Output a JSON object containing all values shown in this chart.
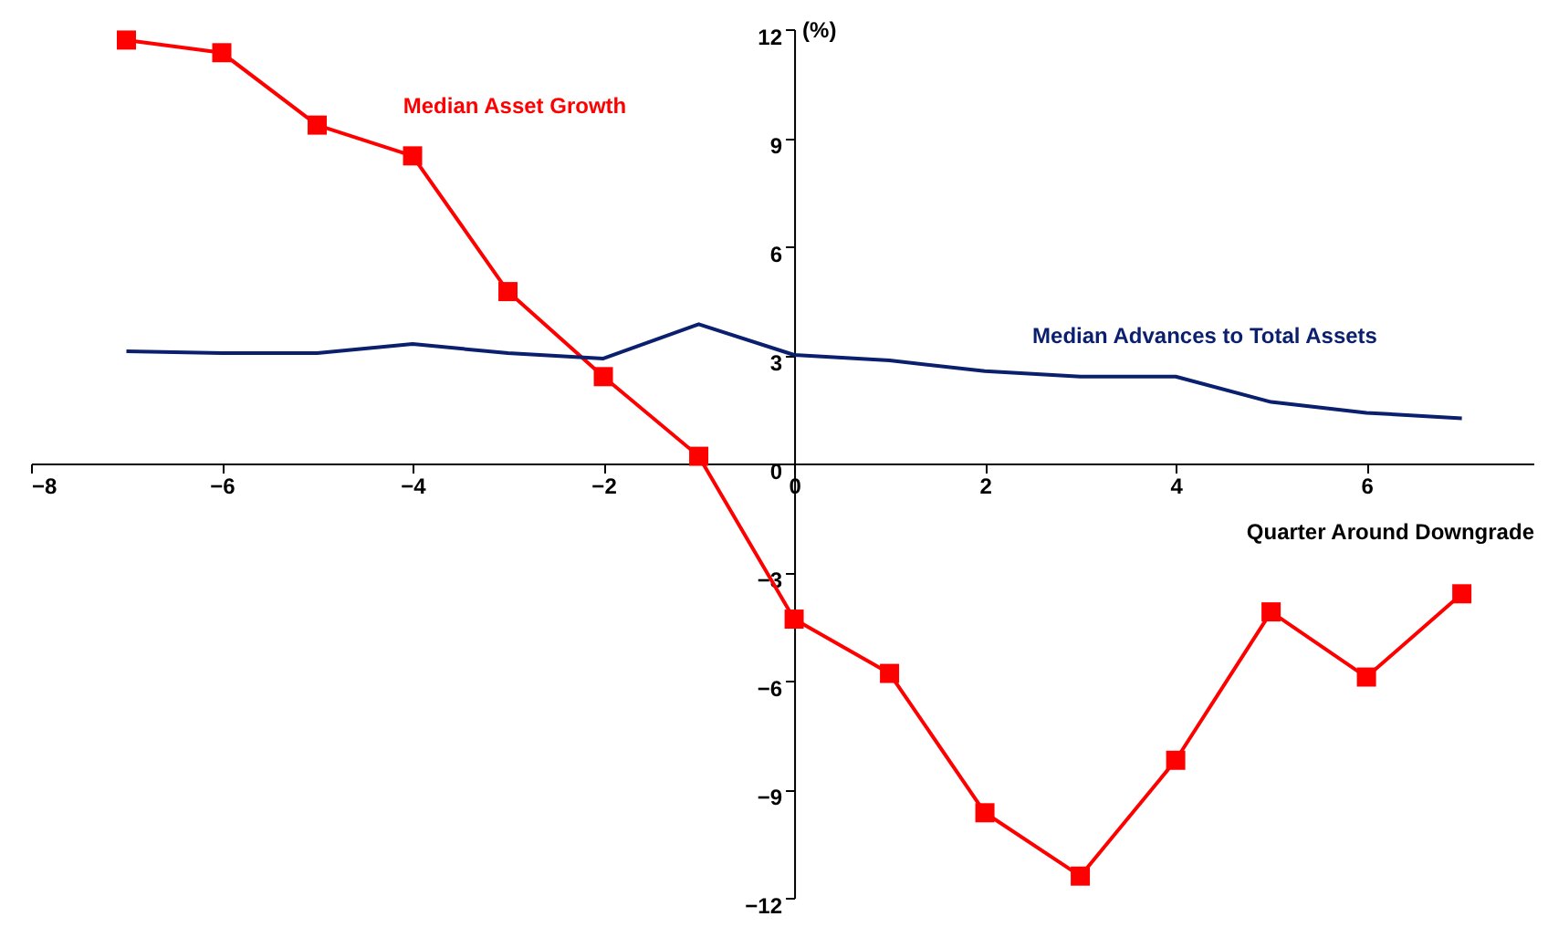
{
  "chart_data": {
    "type": "line",
    "ylabel": "(%)",
    "xlabel": "Quarter Around Downgrade",
    "x": [
      -7,
      -6,
      -5,
      -4,
      -3,
      -2,
      -1,
      0,
      1,
      2,
      3,
      4,
      5,
      6,
      7
    ],
    "series": [
      {
        "name": "Median Asset Growth",
        "color": "#ff0000",
        "marker": "square",
        "values": [
          11.7,
          11.35,
          9.35,
          8.5,
          4.75,
          2.4,
          0.2,
          -4.3,
          -5.8,
          -9.65,
          -11.4,
          -8.2,
          -4.1,
          -5.9,
          -3.6
        ]
      },
      {
        "name": "Median Advances to Total Assets",
        "color": "#0a1f6e",
        "marker": "none",
        "values": [
          3.1,
          3.05,
          3.05,
          3.3,
          3.05,
          2.9,
          3.85,
          3.0,
          2.85,
          2.55,
          2.4,
          2.4,
          1.7,
          1.4,
          1.25
        ]
      }
    ],
    "xlim": [
      -8,
      7.75
    ],
    "xticks": [
      -8,
      -6,
      -4,
      -2,
      0,
      2,
      4,
      6
    ],
    "ylim": [
      -12,
      12
    ],
    "yticks": [
      -12,
      -9,
      -6,
      -3,
      0,
      3,
      6,
      9,
      12
    ],
    "grid": false
  }
}
